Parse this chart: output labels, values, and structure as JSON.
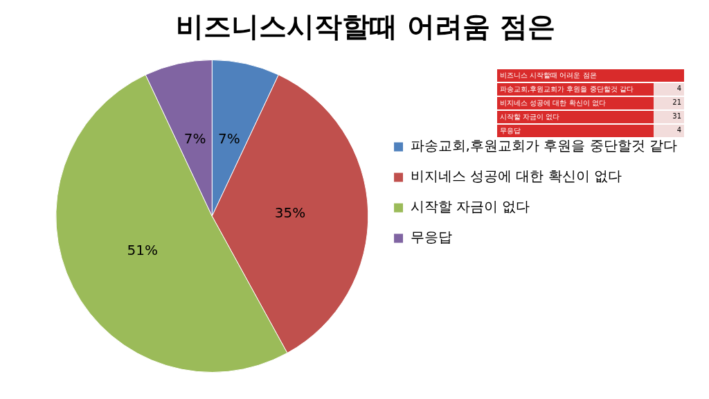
{
  "chart_data": [
    {
      "type": "pie",
      "title": "비즈니스시작할때 어려움 점은",
      "categories": [
        "파송교회,후원교회가 후원을 중단할것 같다",
        "비지네스 성공에 대한 확신이 없다",
        "시작할 자금이 없다",
        "무응답"
      ],
      "values": [
        7,
        35,
        51,
        7
      ],
      "value_labels": [
        "7%",
        "35%",
        "51%",
        "7%"
      ],
      "colors": [
        "#4f81bd",
        "#c0504d",
        "#9bbb59",
        "#8064a2"
      ],
      "legend": "right"
    },
    {
      "type": "other",
      "title": "비즈니스 시작할때 어려운 점은",
      "categories": [
        "파송교회,후원교회가 후원을 중단할것 같다",
        "비지네스 성공에 대한 확신이 없다",
        "시작할 자금이 없다",
        "무응답"
      ],
      "values": [
        4,
        21,
        31,
        4
      ],
      "data_labels": true
    }
  ]
}
